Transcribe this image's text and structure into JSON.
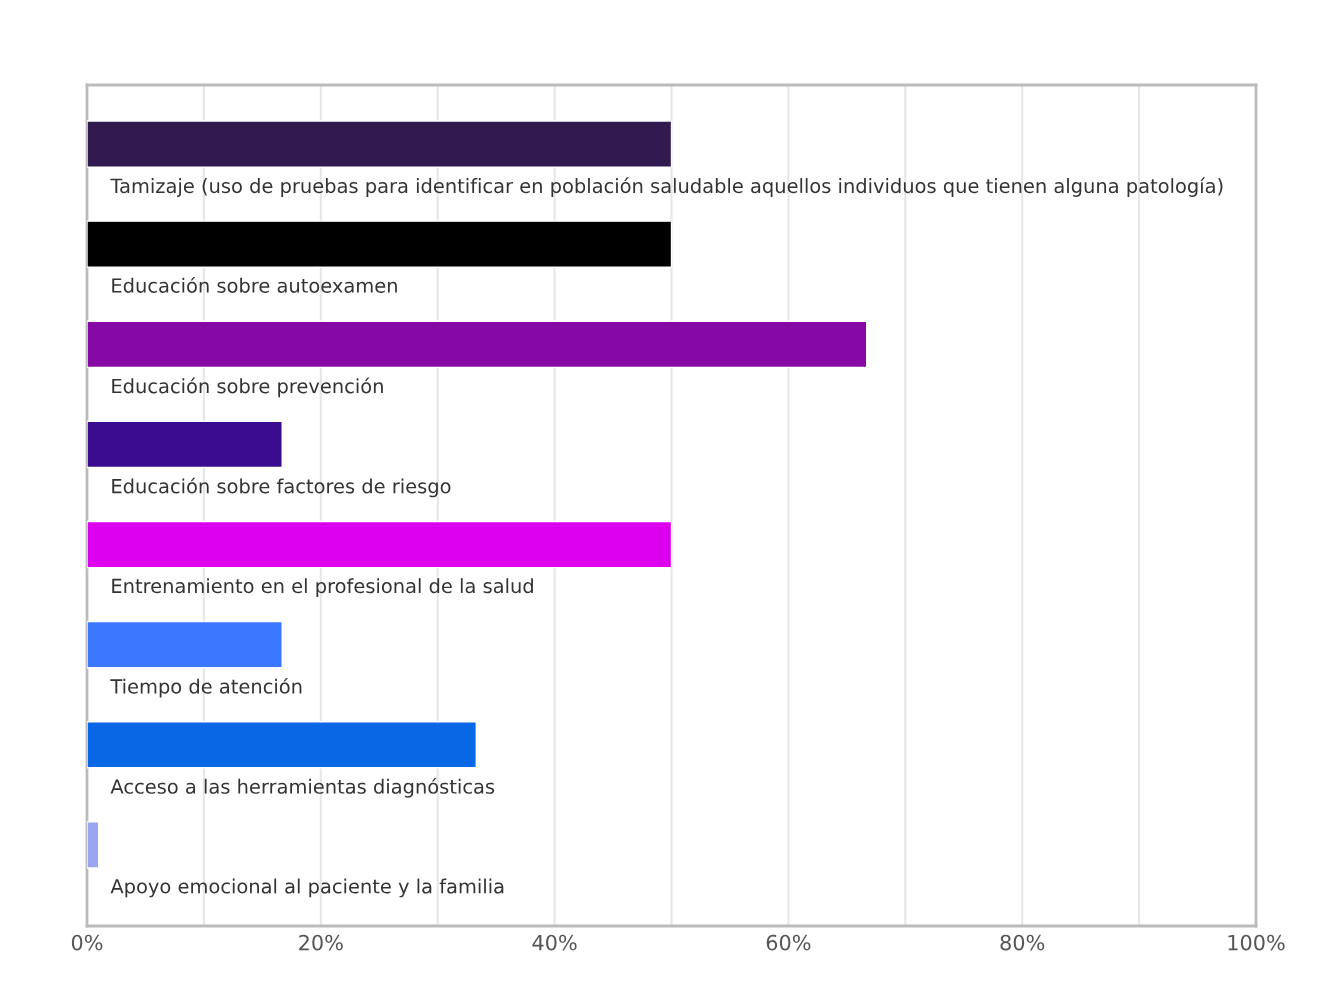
{
  "chart_data": {
    "type": "bar",
    "orientation": "horizontal",
    "categories": [
      "Tamizaje (uso de pruebas para identificar en población saludable aquellos individuos que tienen alguna patología)",
      "Educación sobre autoexamen",
      "Educación sobre prevención",
      "Educación sobre factores de riesgo",
      "Entrenamiento en el profesional de la salud",
      "Tiempo de atención",
      "Acceso a las herramientas diagnósticas",
      "Apoyo emocional al paciente y la familia"
    ],
    "values": [
      50,
      50,
      66.7,
      16.7,
      50,
      16.7,
      33.3,
      1
    ],
    "colors": [
      "#311a4f",
      "#000000",
      "#8709a5",
      "#3a0c8f",
      "#dd00ee",
      "#3b77ff",
      "#0767e4",
      "#9aa5f0"
    ],
    "xlim": [
      0,
      100
    ],
    "xticks": [
      {
        "value": 0,
        "label": "0%"
      },
      {
        "value": 10,
        "label": null
      },
      {
        "value": 20,
        "label": "20%"
      },
      {
        "value": 30,
        "label": null
      },
      {
        "value": 40,
        "label": "40%"
      },
      {
        "value": 50,
        "label": null
      },
      {
        "value": 60,
        "label": "60%"
      },
      {
        "value": 70,
        "label": null
      },
      {
        "value": 80,
        "label": "80%"
      },
      {
        "value": 90,
        "label": null
      },
      {
        "value": 100,
        "label": "100%"
      }
    ],
    "grid": "x",
    "legend": false
  }
}
